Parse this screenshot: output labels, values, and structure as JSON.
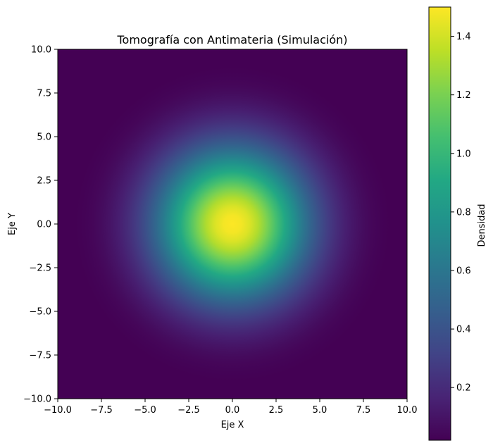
{
  "chart_data": {
    "type": "heatmap",
    "title": "Tomografía con Antimateria (Simulación)",
    "xlabel": "Eje X",
    "ylabel": "Eje Y",
    "xlim": [
      -10,
      10
    ],
    "ylim": [
      -10,
      10
    ],
    "x_ticks": [
      -10,
      -7.5,
      -5,
      -2.5,
      0,
      2.5,
      5,
      7.5,
      10
    ],
    "y_ticks": [
      -10,
      -7.5,
      -5,
      -2.5,
      0,
      2.5,
      5,
      7.5,
      10
    ],
    "x_tick_labels": [
      "−10.0",
      "−7.5",
      "−5.0",
      "−2.5",
      "0.0",
      "2.5",
      "5.0",
      "7.5",
      "10.0"
    ],
    "y_tick_labels": [
      "−10.0",
      "−7.5",
      "−5.0",
      "−2.5",
      "0.0",
      "2.5",
      "5.0",
      "7.5",
      "10.0"
    ],
    "density_center": [
      0,
      0
    ],
    "peak_value": 1.5,
    "falloff_sigma": 3,
    "colormap": "viridis",
    "grid": false,
    "colorbar": {
      "label": "Densidad",
      "range": [
        0.02,
        1.5
      ],
      "ticks": [
        0.2,
        0.4,
        0.6,
        0.8,
        1.0,
        1.2,
        1.4
      ],
      "tick_labels": [
        "0.2",
        "0.4",
        "0.6",
        "0.8",
        "1.0",
        "1.2",
        "1.4"
      ],
      "position": "right"
    }
  }
}
